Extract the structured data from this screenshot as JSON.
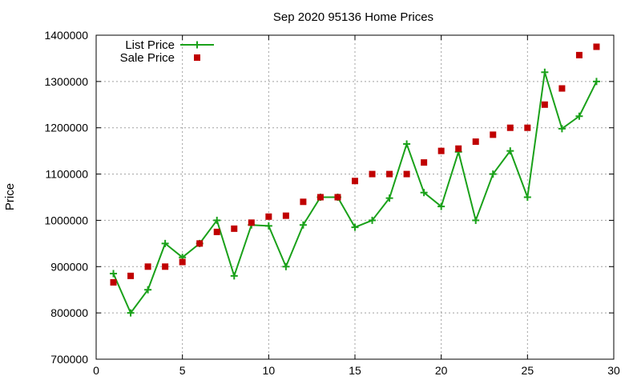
{
  "chart_data": {
    "type": "line",
    "title": "Sep 2020 95136 Home Prices",
    "xlabel": "",
    "ylabel": "Price",
    "xlim": [
      0,
      30
    ],
    "ylim": [
      700000,
      1400000
    ],
    "xticks": [
      0,
      5,
      10,
      15,
      20,
      25,
      30
    ],
    "yticks": [
      700000,
      800000,
      900000,
      1000000,
      1100000,
      1200000,
      1300000,
      1400000
    ],
    "grid": true,
    "legend_position": "top-left",
    "series": [
      {
        "name": "List Price",
        "style": "line-points",
        "marker": "plus",
        "color": "#1aa11a",
        "x": [
          1,
          2,
          3,
          4,
          5,
          6,
          7,
          8,
          9,
          10,
          11,
          12,
          13,
          14,
          15,
          16,
          17,
          18,
          19,
          20,
          21,
          22,
          23,
          24,
          25,
          26,
          27,
          28,
          29
        ],
        "y": [
          885000,
          800000,
          850000,
          950000,
          920000,
          950000,
          1000000,
          880000,
          990000,
          988000,
          900000,
          990000,
          1050000,
          1050000,
          985000,
          1000000,
          1048000,
          1165000,
          1060000,
          1030000,
          1148000,
          1000000,
          1100000,
          1150000,
          1050000,
          1320000,
          1198000,
          1225000,
          1300000
        ]
      },
      {
        "name": "Sale Price",
        "style": "points",
        "marker": "square",
        "color": "#c00000",
        "x": [
          1,
          2,
          3,
          4,
          5,
          6,
          7,
          8,
          9,
          10,
          11,
          12,
          13,
          14,
          15,
          16,
          17,
          18,
          19,
          20,
          21,
          22,
          23,
          24,
          25,
          26,
          27,
          28,
          29
        ],
        "y": [
          866000,
          880000,
          900000,
          900000,
          910000,
          950000,
          975000,
          982000,
          995000,
          1008000,
          1010000,
          1040000,
          1050000,
          1050000,
          1085000,
          1100000,
          1100000,
          1100000,
          1125000,
          1150000,
          1155000,
          1170000,
          1185000,
          1200000,
          1200000,
          1250000,
          1285000,
          1357000,
          1375000
        ]
      }
    ]
  }
}
